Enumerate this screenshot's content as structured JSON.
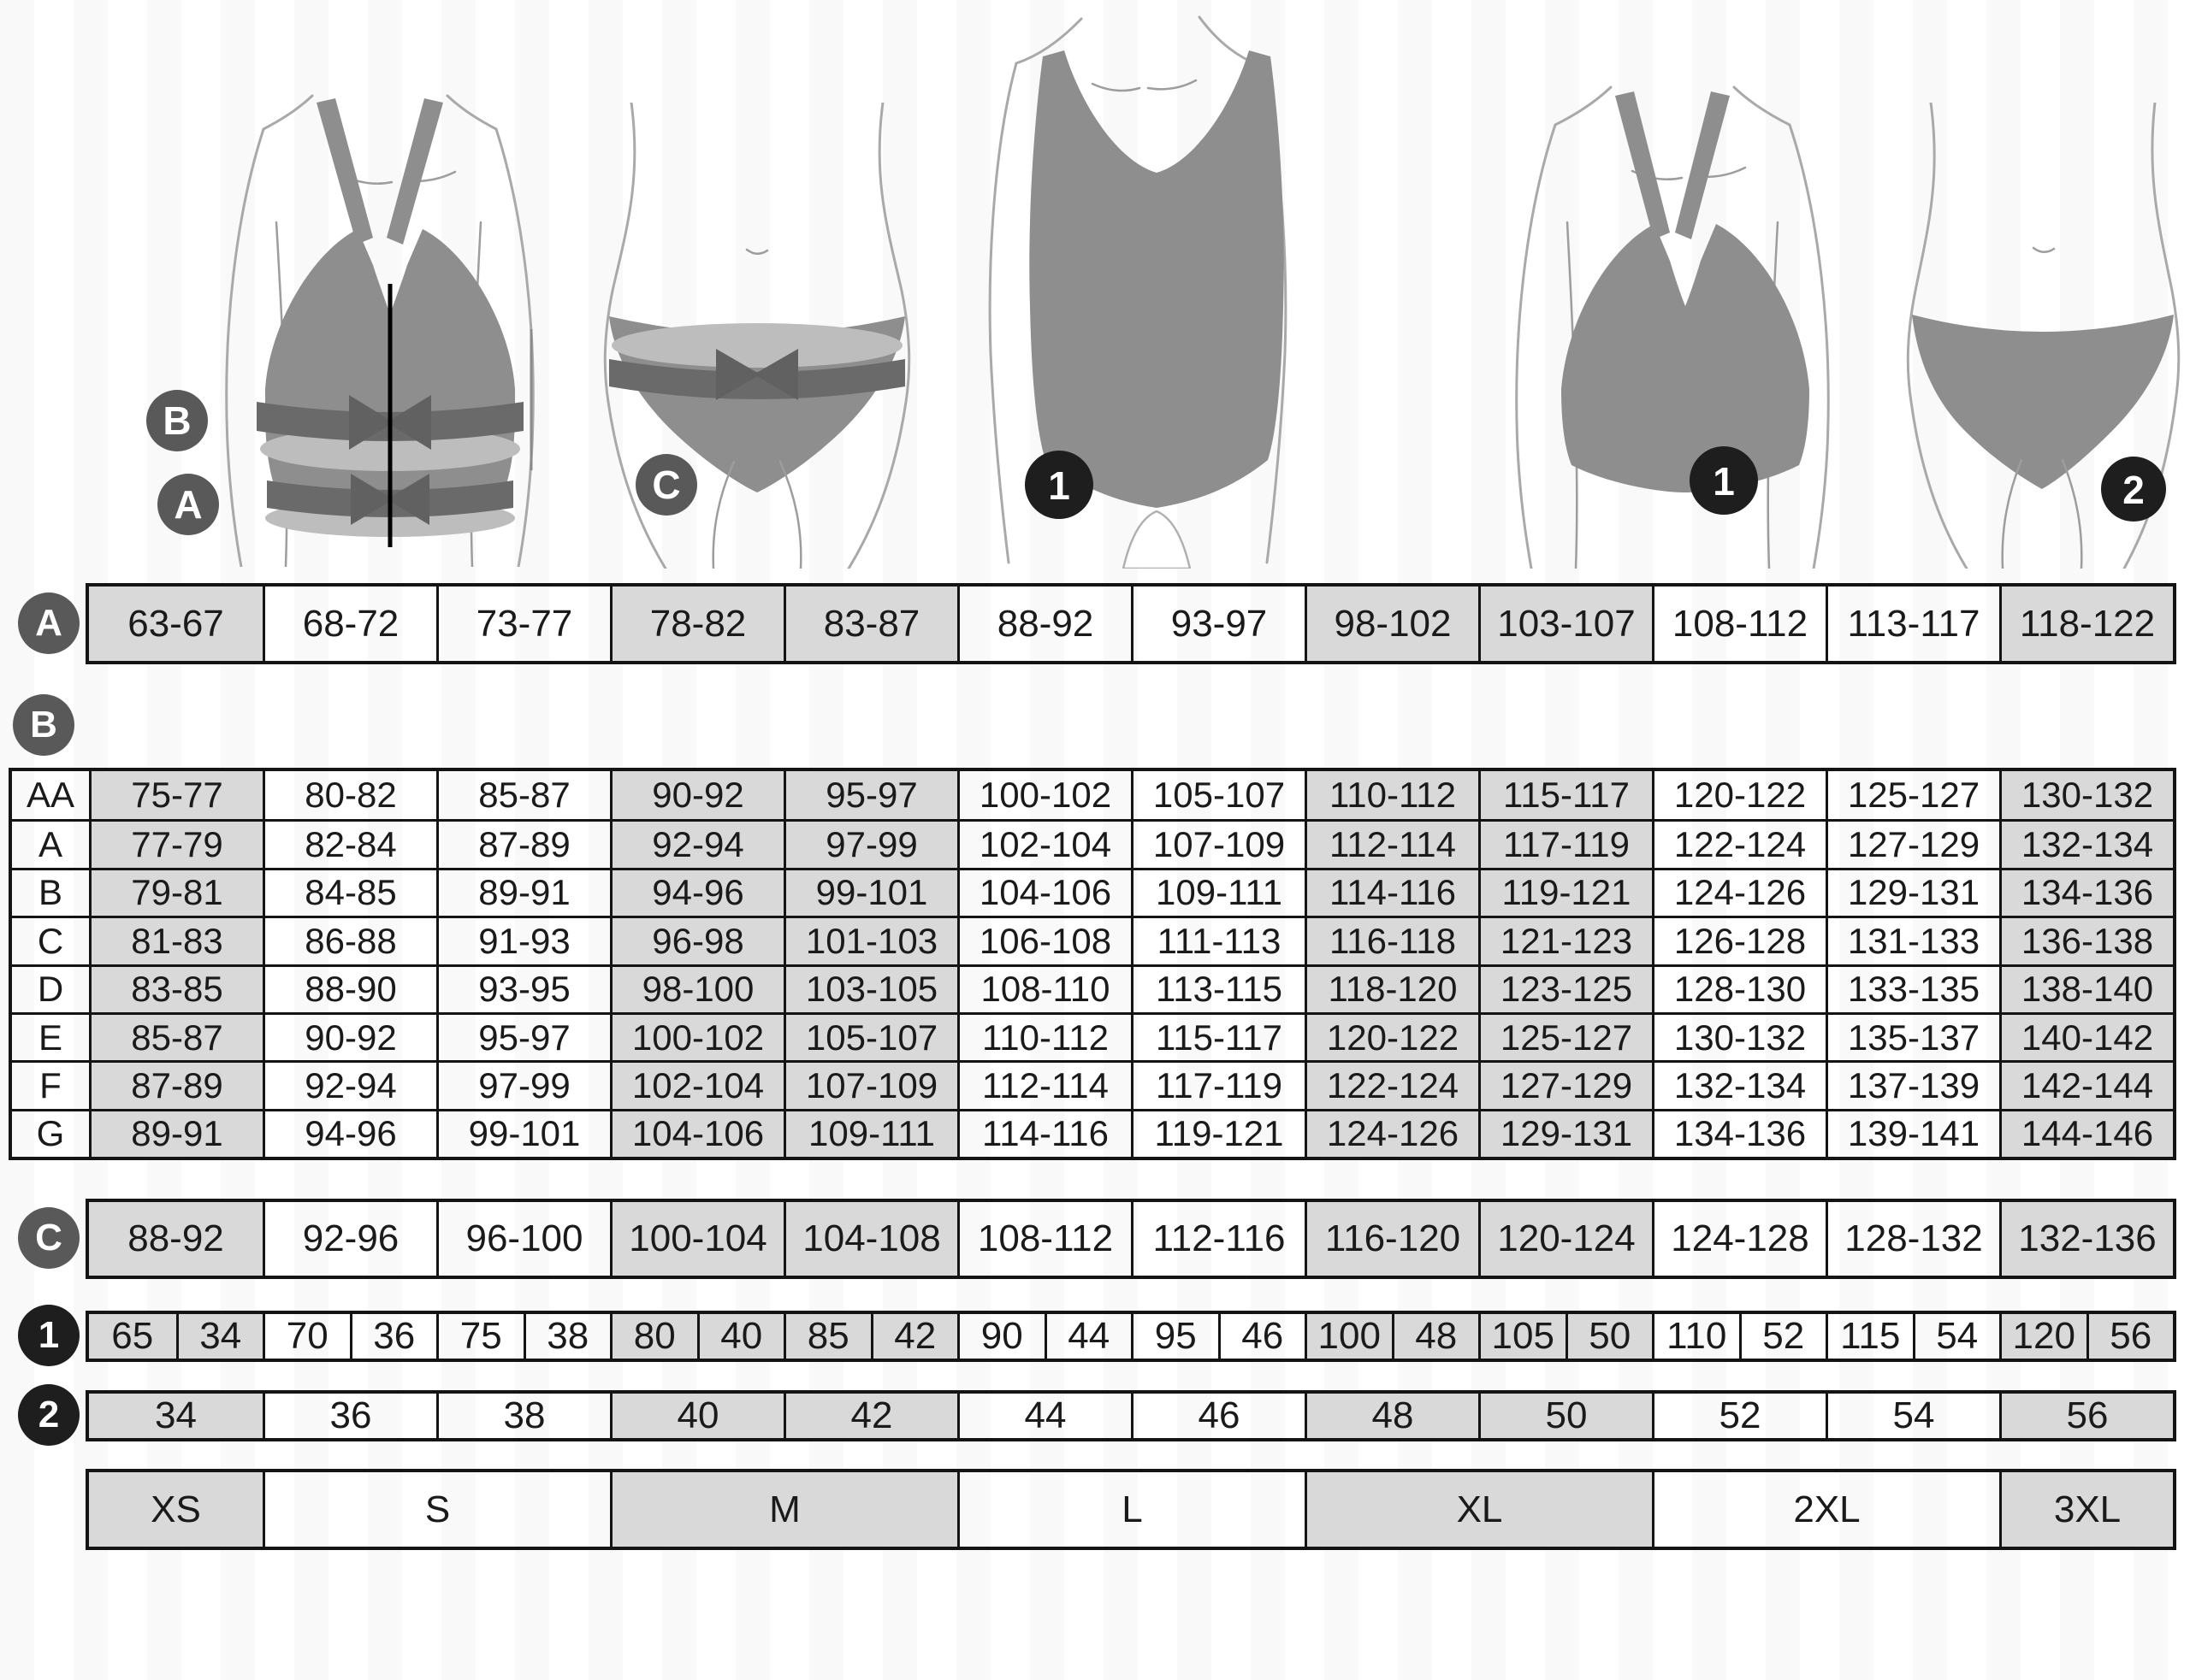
{
  "legend": {
    "underbust": "A",
    "bust": "B",
    "hips": "C",
    "bra_size": "1",
    "panty_size": "2"
  },
  "colors": {
    "cell_gray": "#d9d9d9",
    "table_border": "#141414",
    "label_circle_gray": "#595959",
    "label_circle_dark": "#1e1e1e",
    "garment_gray": "#8e8e8e",
    "band_dark": "#6a6a6a",
    "band_light": "#bdbdbd"
  },
  "measurements": {
    "underbust_row": {
      "label": "A",
      "values": [
        "63-67",
        "68-72",
        "73-77",
        "78-82",
        "83-87",
        "88-92",
        "93-97",
        "98-102",
        "103-107",
        "108-112",
        "113-117",
        "118-122"
      ]
    },
    "cup_table": {
      "label": "B",
      "rows": [
        {
          "cup": "AA",
          "values": [
            "75-77",
            "80-82",
            "85-87",
            "90-92",
            "95-97",
            "100-102",
            "105-107",
            "110-112",
            "115-117",
            "120-122",
            "125-127",
            "130-132"
          ]
        },
        {
          "cup": "A",
          "values": [
            "77-79",
            "82-84",
            "87-89",
            "92-94",
            "97-99",
            "102-104",
            "107-109",
            "112-114",
            "117-119",
            "122-124",
            "127-129",
            "132-134"
          ]
        },
        {
          "cup": "B",
          "values": [
            "79-81",
            "84-85",
            "89-91",
            "94-96",
            "99-101",
            "104-106",
            "109-111",
            "114-116",
            "119-121",
            "124-126",
            "129-131",
            "134-136"
          ]
        },
        {
          "cup": "C",
          "values": [
            "81-83",
            "86-88",
            "91-93",
            "96-98",
            "101-103",
            "106-108",
            "111-113",
            "116-118",
            "121-123",
            "126-128",
            "131-133",
            "136-138"
          ]
        },
        {
          "cup": "D",
          "values": [
            "83-85",
            "88-90",
            "93-95",
            "98-100",
            "103-105",
            "108-110",
            "113-115",
            "118-120",
            "123-125",
            "128-130",
            "133-135",
            "138-140"
          ]
        },
        {
          "cup": "E",
          "values": [
            "85-87",
            "90-92",
            "95-97",
            "100-102",
            "105-107",
            "110-112",
            "115-117",
            "120-122",
            "125-127",
            "130-132",
            "135-137",
            "140-142"
          ]
        },
        {
          "cup": "F",
          "values": [
            "87-89",
            "92-94",
            "97-99",
            "102-104",
            "107-109",
            "112-114",
            "117-119",
            "122-124",
            "127-129",
            "132-134",
            "137-139",
            "142-144"
          ]
        },
        {
          "cup": "G",
          "values": [
            "89-91",
            "94-96",
            "99-101",
            "104-106",
            "109-111",
            "114-116",
            "119-121",
            "124-126",
            "129-131",
            "134-136",
            "139-141",
            "144-146"
          ]
        }
      ]
    },
    "hips_row": {
      "label": "C",
      "values": [
        "88-92",
        "92-96",
        "96-100",
        "100-104",
        "104-108",
        "108-112",
        "112-116",
        "116-120",
        "120-124",
        "124-128",
        "128-132",
        "132-136"
      ]
    },
    "bra_size_row": {
      "label": "1",
      "pairs": [
        [
          "65",
          "34"
        ],
        [
          "70",
          "36"
        ],
        [
          "75",
          "38"
        ],
        [
          "80",
          "40"
        ],
        [
          "85",
          "42"
        ],
        [
          "90",
          "44"
        ],
        [
          "95",
          "46"
        ],
        [
          "100",
          "48"
        ],
        [
          "105",
          "50"
        ],
        [
          "110",
          "52"
        ],
        [
          "115",
          "54"
        ],
        [
          "120",
          "56"
        ]
      ]
    },
    "panty_size_row": {
      "label": "2",
      "values": [
        "34",
        "36",
        "38",
        "40",
        "42",
        "44",
        "46",
        "48",
        "50",
        "52",
        "54",
        "56"
      ]
    },
    "letter_size_row": {
      "sizes": [
        {
          "label": "XS",
          "span": 1
        },
        {
          "label": "S",
          "span": 2
        },
        {
          "label": "M",
          "span": 2
        },
        {
          "label": "L",
          "span": 2
        },
        {
          "label": "XL",
          "span": 2
        },
        {
          "label": "2XL",
          "span": 2
        },
        {
          "label": "3XL",
          "span": 1
        }
      ]
    }
  }
}
